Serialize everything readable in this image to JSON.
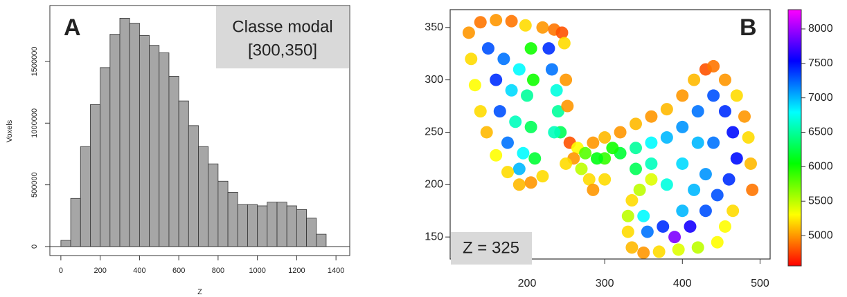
{
  "chart_data": [
    {
      "type": "histogram",
      "title": "A",
      "annotation": [
        "Classe modal",
        "[300,350]"
      ],
      "xlabel": "Z",
      "ylabel": "Voxels",
      "color": "#a6a6a6",
      "bins": [
        0,
        50,
        100,
        150,
        200,
        250,
        300,
        350,
        400,
        450,
        500,
        550,
        600,
        650,
        700,
        750,
        800,
        850,
        900,
        950,
        1000,
        1050,
        1100,
        1150,
        1200,
        1250,
        1300,
        1350
      ],
      "values": [
        50000,
        390000,
        810000,
        1150000,
        1450000,
        1720000,
        1850000,
        1810000,
        1710000,
        1630000,
        1570000,
        1380000,
        1180000,
        980000,
        810000,
        670000,
        530000,
        440000,
        340000,
        340000,
        330000,
        360000,
        360000,
        330000,
        300000,
        230000,
        100000
      ],
      "xlim": [
        -56,
        1470
      ],
      "xticks": [
        0,
        200,
        400,
        600,
        800,
        1000,
        1200,
        1400
      ],
      "ylim": [
        -73000,
        1953000
      ],
      "yticks": [
        0,
        500000,
        1000000,
        1500000
      ]
    },
    {
      "type": "scatter",
      "title": "B",
      "annotation": "Z = 325",
      "xlim": [
        101,
        513
      ],
      "xticks": [
        200,
        300,
        400,
        500
      ],
      "ylim": [
        129,
        367
      ],
      "yticks": [
        150,
        200,
        250,
        300,
        350
      ],
      "clim": [
        4560,
        8280
      ],
      "cticks": [
        5000,
        5500,
        6000,
        6500,
        7000,
        7500,
        8000
      ],
      "colormap": [
        "#ff0000",
        "#ffff00",
        "#00ff00",
        "#00ffff",
        "#0000ff",
        "#ff00ff"
      ],
      "points": [
        [
          150,
          330,
          7300
        ],
        [
          170,
          320,
          7200
        ],
        [
          190,
          310,
          6800
        ],
        [
          160,
          300,
          7400
        ],
        [
          180,
          290,
          6900
        ],
        [
          200,
          285,
          6500
        ],
        [
          165,
          270,
          7300
        ],
        [
          185,
          260,
          6600
        ],
        [
          205,
          255,
          6300
        ],
        [
          175,
          240,
          7200
        ],
        [
          195,
          230,
          6800
        ],
        [
          190,
          215,
          7000
        ],
        [
          210,
          225,
          6200
        ],
        [
          228,
          330,
          7400
        ],
        [
          232,
          310,
          7200
        ],
        [
          238,
          290,
          6700
        ],
        [
          240,
          270,
          6500
        ],
        [
          243,
          250,
          6300
        ],
        [
          235,
          250,
          6600
        ],
        [
          320,
          230,
          6200
        ],
        [
          340,
          235,
          6500
        ],
        [
          360,
          240,
          6800
        ],
        [
          380,
          245,
          7000
        ],
        [
          400,
          255,
          7100
        ],
        [
          420,
          270,
          7200
        ],
        [
          440,
          285,
          7300
        ],
        [
          455,
          270,
          7400
        ],
        [
          465,
          250,
          7500
        ],
        [
          470,
          225,
          7500
        ],
        [
          460,
          205,
          7400
        ],
        [
          445,
          190,
          7300
        ],
        [
          430,
          175,
          7300
        ],
        [
          410,
          160,
          7600
        ],
        [
          390,
          150,
          7900
        ],
        [
          375,
          160,
          7400
        ],
        [
          355,
          155,
          7200
        ],
        [
          350,
          170,
          6800
        ],
        [
          400,
          175,
          7000
        ],
        [
          380,
          200,
          6700
        ],
        [
          360,
          220,
          6600
        ],
        [
          400,
          220,
          6900
        ],
        [
          420,
          240,
          7000
        ],
        [
          430,
          210,
          7100
        ],
        [
          440,
          240,
          7200
        ],
        [
          300,
          225,
          5900
        ],
        [
          310,
          235,
          6000
        ],
        [
          340,
          215,
          6300
        ],
        [
          415,
          195,
          7000
        ],
        [
          205,
          330,
          6000
        ],
        [
          208,
          300,
          6000
        ],
        [
          125,
          345,
          5000
        ],
        [
          140,
          355,
          4900
        ],
        [
          160,
          357,
          5000
        ],
        [
          180,
          356,
          4900
        ],
        [
          198,
          352,
          5200
        ],
        [
          128,
          320,
          5200
        ],
        [
          133,
          295,
          5300
        ],
        [
          140,
          270,
          5200
        ],
        [
          148,
          250,
          5100
        ],
        [
          160,
          228,
          5300
        ],
        [
          175,
          212,
          5200
        ],
        [
          190,
          200,
          5100
        ],
        [
          205,
          202,
          5000
        ],
        [
          220,
          208,
          5200
        ],
        [
          220,
          350,
          5000
        ],
        [
          235,
          348,
          4900
        ],
        [
          245,
          345,
          4800
        ],
        [
          248,
          335,
          5200
        ],
        [
          250,
          300,
          5000
        ],
        [
          252,
          275,
          5000
        ],
        [
          255,
          240,
          4800
        ],
        [
          265,
          235,
          5300
        ],
        [
          275,
          230,
          5800
        ],
        [
          260,
          225,
          5000
        ],
        [
          285,
          240,
          5000
        ],
        [
          300,
          245,
          5100
        ],
        [
          290,
          225,
          6100
        ],
        [
          270,
          215,
          5500
        ],
        [
          250,
          220,
          5200
        ],
        [
          280,
          205,
          5200
        ],
        [
          285,
          195,
          5000
        ],
        [
          300,
          205,
          5200
        ],
        [
          320,
          250,
          5000
        ],
        [
          340,
          258,
          5100
        ],
        [
          360,
          265,
          5000
        ],
        [
          380,
          272,
          5100
        ],
        [
          400,
          285,
          5000
        ],
        [
          415,
          300,
          5100
        ],
        [
          430,
          310,
          4800
        ],
        [
          440,
          313,
          4900
        ],
        [
          455,
          300,
          5000
        ],
        [
          470,
          285,
          5200
        ],
        [
          480,
          265,
          5000
        ],
        [
          485,
          245,
          5200
        ],
        [
          488,
          220,
          5100
        ],
        [
          490,
          195,
          4900
        ],
        [
          465,
          175,
          5200
        ],
        [
          455,
          160,
          5300
        ],
        [
          445,
          145,
          5300
        ],
        [
          420,
          140,
          5500
        ],
        [
          395,
          138,
          5400
        ],
        [
          370,
          136,
          5200
        ],
        [
          350,
          135,
          5000
        ],
        [
          335,
          140,
          5100
        ],
        [
          330,
          155,
          5200
        ],
        [
          330,
          170,
          5500
        ],
        [
          335,
          185,
          5200
        ],
        [
          345,
          195,
          5500
        ],
        [
          360,
          205,
          5400
        ]
      ]
    }
  ]
}
